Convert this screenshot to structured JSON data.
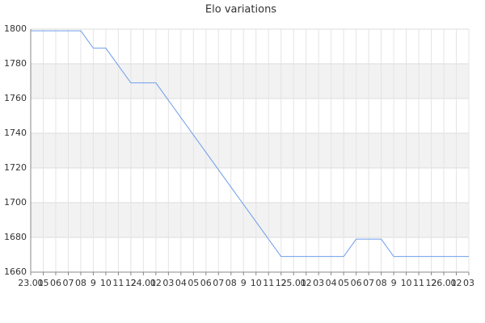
{
  "chart_data": {
    "type": "line",
    "title": "Elo variations",
    "categories": [
      "23.01",
      "05",
      "06",
      "07",
      "08",
      "9",
      "10",
      "11",
      "12",
      "24.01",
      "02",
      "03",
      "04",
      "05",
      "06",
      "07",
      "08",
      "9",
      "10",
      "11",
      "12",
      "25.01",
      "02",
      "03",
      "04",
      "05",
      "06",
      "07",
      "08",
      "9",
      "10",
      "11",
      "12",
      "26.01",
      "02",
      "03"
    ],
    "values": [
      1799,
      1799,
      1799,
      1799,
      1799,
      1789,
      1789,
      1779,
      1769,
      1769,
      1769,
      1759,
      1749,
      1739,
      1729,
      1719,
      1709,
      1699,
      1689,
      1679,
      1669,
      1669,
      1669,
      1669,
      1669,
      1669,
      1679,
      1679,
      1679,
      1669,
      1669,
      1669,
      1669,
      1669,
      1669,
      1669
    ],
    "color": "#6d9eeb",
    "ylim": [
      1660,
      1800
    ],
    "yticks": [
      1660,
      1680,
      1700,
      1720,
      1740,
      1760,
      1780,
      1800
    ],
    "grid": true
  }
}
